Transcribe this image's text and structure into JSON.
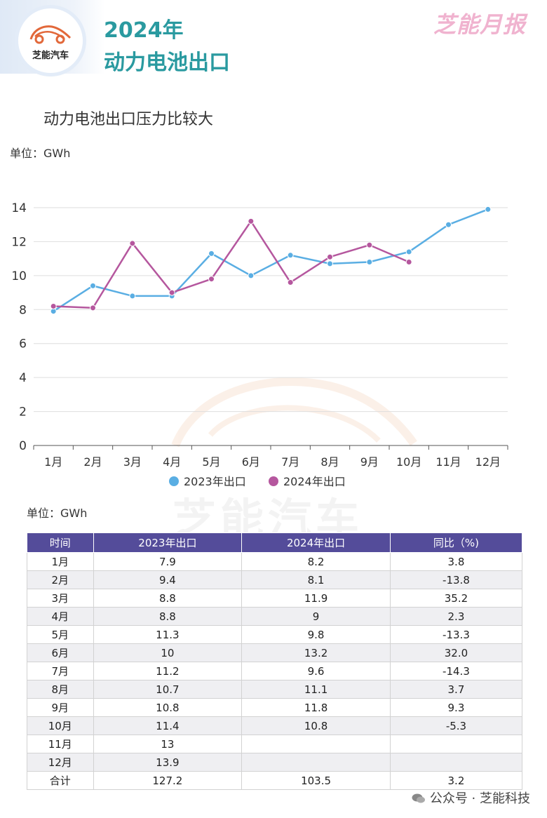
{
  "header": {
    "logo_text": "芝能汽车",
    "title_line1": "2024年",
    "title_line2": "动力电池出口",
    "brand": "芝能月报",
    "accent_color": "#2a9aa0"
  },
  "chart_title": "动力电池出口压力比较大",
  "chart_unit": "单位：GWh",
  "table_unit": "单位：GWh",
  "watermark": "芝能汽车",
  "chart_data": {
    "type": "line",
    "categories": [
      "1月",
      "2月",
      "3月",
      "4月",
      "5月",
      "6月",
      "7月",
      "8月",
      "9月",
      "10月",
      "11月",
      "12月"
    ],
    "series": [
      {
        "name": "2023年出口",
        "color": "#5aaee3",
        "values": [
          7.9,
          9.4,
          8.8,
          8.8,
          11.3,
          10,
          11.2,
          10.7,
          10.8,
          11.4,
          13,
          13.9
        ]
      },
      {
        "name": "2024年出口",
        "color": "#b5579e",
        "values": [
          8.2,
          8.1,
          11.9,
          9,
          9.8,
          13.2,
          9.6,
          11.1,
          11.8,
          10.8,
          null,
          null
        ]
      }
    ],
    "ylim": [
      0,
      14
    ],
    "yticks": [
      0,
      2,
      4,
      6,
      8,
      10,
      12,
      14
    ],
    "grid": true,
    "legend_position": "bottom-center"
  },
  "table": {
    "headers": [
      "时间",
      "2023年出口",
      "2024年出口",
      "同比（%)"
    ],
    "rows": [
      [
        "1月",
        "7.9",
        "8.2",
        "3.8"
      ],
      [
        "2月",
        "9.4",
        "8.1",
        "-13.8"
      ],
      [
        "3月",
        "8.8",
        "11.9",
        "35.2"
      ],
      [
        "4月",
        "8.8",
        "9",
        "2.3"
      ],
      [
        "5月",
        "11.3",
        "9.8",
        "-13.3"
      ],
      [
        "6月",
        "10",
        "13.2",
        "32.0"
      ],
      [
        "7月",
        "11.2",
        "9.6",
        "-14.3"
      ],
      [
        "8月",
        "10.7",
        "11.1",
        "3.7"
      ],
      [
        "9月",
        "10.8",
        "11.8",
        "9.3"
      ],
      [
        "10月",
        "11.4",
        "10.8",
        "-5.3"
      ],
      [
        "11月",
        "13",
        "",
        ""
      ],
      [
        "12月",
        "13.9",
        "",
        ""
      ],
      [
        "合计",
        "127.2",
        "103.5",
        "3.2"
      ]
    ],
    "header_color": "#544c9a"
  },
  "footer": "公众号 · 芝能科技"
}
